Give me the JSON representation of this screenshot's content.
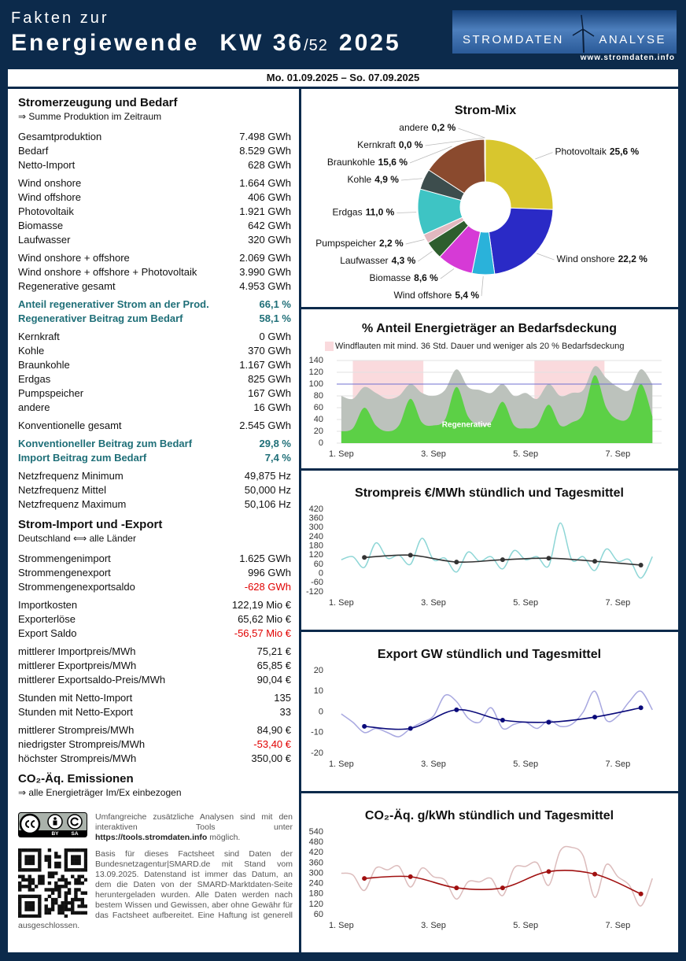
{
  "header": {
    "title_line1": "Fakten zur",
    "title_line2": "Energiewende",
    "week": "KW 36",
    "week_total": "/52",
    "year": "2025",
    "logo_left": "STROMDATEN",
    "logo_right": "ANALYSE",
    "logo_url": "www.stromdaten.info",
    "period": "Mo. 01.09.2025 – So. 07.09.2025"
  },
  "summary": {
    "sections": [
      {
        "title": "Stromerzeugung und Bedarf",
        "subtitle": "⇒ Summe Produktion im Zeitraum",
        "groups": [
          [
            {
              "label": "Gesamtproduktion",
              "value": "7.498 GWh"
            },
            {
              "label": "Bedarf",
              "value": "8.529 GWh"
            },
            {
              "label": "Netto-Import",
              "value": "628 GWh"
            }
          ],
          [
            {
              "label": "Wind onshore",
              "value": "1.664 GWh"
            },
            {
              "label": "Wind offshore",
              "value": "406 GWh"
            },
            {
              "label": "Photovoltaik",
              "value": "1.921 GWh"
            },
            {
              "label": "Biomasse",
              "value": "642 GWh"
            },
            {
              "label": "Laufwasser",
              "value": "320 GWh"
            }
          ],
          [
            {
              "label": "Wind onshore + offshore",
              "value": "2.069 GWh"
            },
            {
              "label": "Wind onshore + offshore + Photovoltaik",
              "value": "3.990 GWh"
            },
            {
              "label": "Regenerative gesamt",
              "value": "4.953 GWh"
            }
          ],
          [
            {
              "label": "Anteil regenerativer Strom an der Prod.",
              "value": "66,1 %",
              "style": "highlight"
            },
            {
              "label": "Regenerativer Beitrag zum Bedarf",
              "value": "58,1 %",
              "style": "highlight"
            }
          ],
          [
            {
              "label": "Kernkraft",
              "value": "0 GWh"
            },
            {
              "label": "Kohle",
              "value": "370 GWh"
            },
            {
              "label": "Braunkohle",
              "value": "1.167 GWh"
            },
            {
              "label": "Erdgas",
              "value": "825 GWh"
            },
            {
              "label": "Pumpspeicher",
              "value": "167 GWh"
            },
            {
              "label": "andere",
              "value": "16 GWh"
            }
          ],
          [
            {
              "label": "Konventionelle gesamt",
              "value": "2.545 GWh"
            }
          ],
          [
            {
              "label": "Konventioneller Beitrag zum Bedarf",
              "value": "29,8 %",
              "style": "highlight"
            },
            {
              "label": "Import Beitrag zum Bedarf",
              "value": "7,4 %",
              "style": "highlight"
            }
          ],
          [
            {
              "label": "Netzfrequenz Minimum",
              "value": "49,875 Hz"
            },
            {
              "label": "Netzfrequenz Mittel",
              "value": "50,000 Hz"
            },
            {
              "label": "Netzfrequenz Maximum",
              "value": "50,106 Hz"
            }
          ]
        ]
      },
      {
        "title": "Strom-Import und -Export",
        "subtitle": "Deutschland ⟺ alle Länder",
        "groups": [
          [
            {
              "label": "Strommengenimport",
              "value": "1.625 GWh"
            },
            {
              "label": "Strommengenexport",
              "value": "996 GWh"
            },
            {
              "label": "Strommengenexportsaldo",
              "value": "-628 GWh",
              "style": "negative"
            }
          ],
          [
            {
              "label": "Importkosten",
              "value": "122,19 Mio €"
            },
            {
              "label": "Exporterlöse",
              "value": "65,62 Mio €"
            },
            {
              "label": "Export Saldo",
              "value": "-56,57 Mio €",
              "style": "negative"
            }
          ],
          [
            {
              "label": "mittlerer Importpreis/MWh",
              "value": "75,21 €"
            },
            {
              "label": "mittlerer Exportpreis/MWh",
              "value": "65,85 €"
            },
            {
              "label": "mittlerer Exportsaldo-Preis/MWh",
              "value": "90,04 €"
            }
          ],
          [
            {
              "label": "Stunden mit Netto-Import",
              "value": "135"
            },
            {
              "label": "Stunden mit Netto-Export",
              "value": "33"
            }
          ],
          [
            {
              "label": "mittlerer Strompreis/MWh",
              "value": "84,90 €"
            },
            {
              "label": "niedrigster Strompreis/MWh",
              "value": "-53,40 €",
              "style": "negative"
            },
            {
              "label": "höchster Strompreis/MWh",
              "value": "350,00 €"
            }
          ]
        ]
      },
      {
        "title": "CO₂-Äq. Emissionen",
        "subtitle": "⇒ alle Energieträger Im/Ex einbezogen",
        "groups": []
      }
    ]
  },
  "footer": {
    "license_labels": [
      "BY",
      "SA"
    ],
    "tools_intro": "Umfangreiche zusätzliche Analysen sind mit den interaktiven Tools unter",
    "tools_url": "https://tools.stromdaten.info",
    "tools_outro": "möglich.",
    "disclaimer": "Basis für dieses Factsheet sind Daten der Bundesnetzagentur|SMARD.de mit Stand vom 13.09.2025. Datenstand ist immer das Datum, an dem die Daten von der SMARD-Marktdaten-Seite heruntergeladen wurden. Alle Daten werden nach bestem Wissen und Gewissen, aber ohne Gewähr für das Factsheet aufbereitet. Eine Haftung ist generell ausgeschlossen."
  },
  "chart_data": [
    {
      "type": "pie",
      "title": "Strom-Mix",
      "categories": [
        "Photovoltaik",
        "Wind onshore",
        "Wind offshore",
        "Biomasse",
        "Laufwasser",
        "Pumpspeicher",
        "Erdgas",
        "Kohle",
        "Braunkohle",
        "Kernkraft",
        "andere"
      ],
      "values": [
        25.6,
        22.2,
        5.4,
        8.6,
        4.3,
        2.2,
        11.0,
        4.9,
        15.6,
        0.0,
        0.2
      ],
      "value_labels": [
        "25,6 %",
        "22,2 %",
        "5,4 %",
        "8,6 %",
        "4,3 %",
        "2,2 %",
        "11,0 %",
        "4,9 %",
        "15,6 %",
        "0,0 %",
        "0,2 %"
      ],
      "colors": [
        "#d8c62e",
        "#2a2ac6",
        "#2ab2da",
        "#d63ad6",
        "#2e5e2e",
        "#e2b8bf",
        "#3ec4c4",
        "#3d4d4d",
        "#8a4a2e",
        "#c8a0a0",
        "#b0b0b0"
      ]
    },
    {
      "type": "area",
      "title": "% Anteil Energieträger an Bedarfsdeckung",
      "x": [
        1,
        1.25,
        1.5,
        1.75,
        2,
        2.25,
        2.5,
        2.75,
        3,
        3.25,
        3.5,
        3.75,
        4,
        4.25,
        4.5,
        4.75,
        5,
        5.25,
        5.5,
        5.75,
        6,
        6.25,
        6.5,
        6.75,
        7,
        7.25,
        7.5,
        7.75
      ],
      "series": [
        {
          "color": "#bcc2bc",
          "values": [
            80,
            75,
            95,
            85,
            75,
            80,
            100,
            85,
            80,
            90,
            125,
            95,
            90,
            85,
            100,
            80,
            85,
            75,
            100,
            80,
            85,
            90,
            130,
            110,
            95,
            90,
            125,
            100
          ]
        },
        {
          "name": "Regenerative",
          "color": "#5cd046",
          "values": [
            20,
            25,
            60,
            30,
            20,
            30,
            75,
            35,
            30,
            40,
            95,
            45,
            30,
            35,
            70,
            30,
            25,
            30,
            65,
            30,
            35,
            50,
            115,
            60,
            40,
            45,
            100,
            45
          ]
        }
      ],
      "xlim": [
        0.9,
        7.95
      ],
      "ylim": [
        0,
        140
      ],
      "yticks": [
        0,
        20,
        40,
        60,
        80,
        100,
        120,
        140
      ],
      "xticks": [
        {
          "value": 1,
          "label": "1. Sep"
        },
        {
          "value": 3,
          "label": "3. Sep"
        },
        {
          "value": 5,
          "label": "5. Sep"
        },
        {
          "value": 7,
          "label": "7. Sep"
        }
      ],
      "grid": true,
      "reference_line": 100,
      "reference_color": "#7070d0",
      "highlight": {
        "label": "Windflauten mit mind. 36 Std. Dauer und weniger als 20 % Bedarfsdeckung",
        "color": "#fadadd",
        "spans": [
          [
            1.25,
            2.78
          ],
          [
            5.19,
            6.71
          ]
        ]
      }
    },
    {
      "type": "line",
      "title": "Strompreis €/MWh stündlich und Tagesmittel",
      "series": [
        {
          "color": "#8ed6d6",
          "x": [
            1,
            1.25,
            1.5,
            1.75,
            2,
            2.25,
            2.5,
            2.75,
            3,
            3.25,
            3.5,
            3.75,
            4,
            4.25,
            4.5,
            4.75,
            5,
            5.25,
            5.5,
            5.75,
            6,
            6.25,
            6.5,
            6.75,
            7,
            7.25,
            7.5,
            7.75
          ],
          "values": [
            90,
            110,
            40,
            200,
            100,
            120,
            60,
            230,
            90,
            100,
            10,
            140,
            80,
            110,
            30,
            150,
            90,
            110,
            50,
            330,
            90,
            110,
            20,
            160,
            80,
            90,
            -30,
            110
          ]
        },
        {
          "color": "#333333",
          "markers": true,
          "x": [
            1.5,
            2.5,
            3.5,
            4.5,
            5.5,
            6.5,
            7.5
          ],
          "values": [
            105,
            120,
            75,
            90,
            100,
            80,
            55
          ]
        }
      ],
      "xlim": [
        0.9,
        7.95
      ],
      "ylim": [
        -120,
        420
      ],
      "yticks": [
        -120,
        -60,
        0,
        60,
        120,
        180,
        240,
        300,
        360,
        420
      ],
      "xticks": [
        {
          "value": 1,
          "label": "1. Sep"
        },
        {
          "value": 3,
          "label": "3. Sep"
        },
        {
          "value": 5,
          "label": "5. Sep"
        },
        {
          "value": 7,
          "label": "7. Sep"
        }
      ]
    },
    {
      "type": "line",
      "title": "Export GW stündlich und Tagesmittel",
      "series": [
        {
          "color": "#a8a8e0",
          "x": [
            1,
            1.25,
            1.5,
            1.75,
            2,
            2.25,
            2.5,
            2.75,
            3,
            3.25,
            3.5,
            3.75,
            4,
            4.25,
            4.5,
            4.75,
            5,
            5.25,
            5.5,
            5.75,
            6,
            6.25,
            6.5,
            6.75,
            7,
            7.25,
            7.5,
            7.75
          ],
          "values": [
            -1,
            -5,
            -10,
            -8,
            -10,
            -12,
            -8,
            -5,
            -2,
            8,
            5,
            -3,
            -5,
            2,
            -8,
            -6,
            -5,
            -8,
            -4,
            -7,
            -6,
            0,
            10,
            -4,
            -2,
            5,
            10,
            1
          ]
        },
        {
          "color": "#0a0a7a",
          "markers": true,
          "x": [
            1.5,
            2.5,
            3.5,
            4.5,
            5.5,
            6.5,
            7.5
          ],
          "values": [
            -7,
            -8,
            1,
            -4,
            -5,
            -2.5,
            2
          ]
        }
      ],
      "xlim": [
        0.9,
        7.95
      ],
      "ylim": [
        -20,
        20
      ],
      "yticks": [
        -20,
        -10,
        0,
        10,
        20
      ],
      "xticks": [
        {
          "value": 1,
          "label": "1. Sep"
        },
        {
          "value": 3,
          "label": "3. Sep"
        },
        {
          "value": 5,
          "label": "5. Sep"
        },
        {
          "value": 7,
          "label": "7. Sep"
        }
      ]
    },
    {
      "type": "line",
      "title": "CO₂-Äq. g/kWh stündlich und Tagesmittel",
      "series": [
        {
          "color": "#dcbcbc",
          "x": [
            1,
            1.25,
            1.5,
            1.75,
            2,
            2.25,
            2.5,
            2.75,
            3,
            3.25,
            3.5,
            3.75,
            4,
            4.25,
            4.5,
            4.75,
            5,
            5.25,
            5.5,
            5.75,
            6,
            6.25,
            6.5,
            6.75,
            7,
            7.25,
            7.5,
            7.75
          ],
          "values": [
            300,
            290,
            200,
            330,
            320,
            340,
            220,
            330,
            280,
            260,
            150,
            250,
            250,
            270,
            170,
            330,
            340,
            360,
            230,
            430,
            450,
            400,
            160,
            350,
            280,
            230,
            110,
            270
          ]
        },
        {
          "color": "#a01010",
          "markers": true,
          "x": [
            1.5,
            2.5,
            3.5,
            4.5,
            5.5,
            6.5,
            7.5
          ],
          "values": [
            270,
            280,
            215,
            215,
            310,
            295,
            180
          ]
        }
      ],
      "xlim": [
        0.9,
        7.95
      ],
      "ylim": [
        60,
        540
      ],
      "yticks": [
        60,
        120,
        180,
        240,
        300,
        360,
        420,
        480,
        540
      ],
      "xticks": [
        {
          "value": 1,
          "label": "1. Sep"
        },
        {
          "value": 3,
          "label": "3. Sep"
        },
        {
          "value": 5,
          "label": "5. Sep"
        },
        {
          "value": 7,
          "label": "7. Sep"
        }
      ]
    }
  ]
}
